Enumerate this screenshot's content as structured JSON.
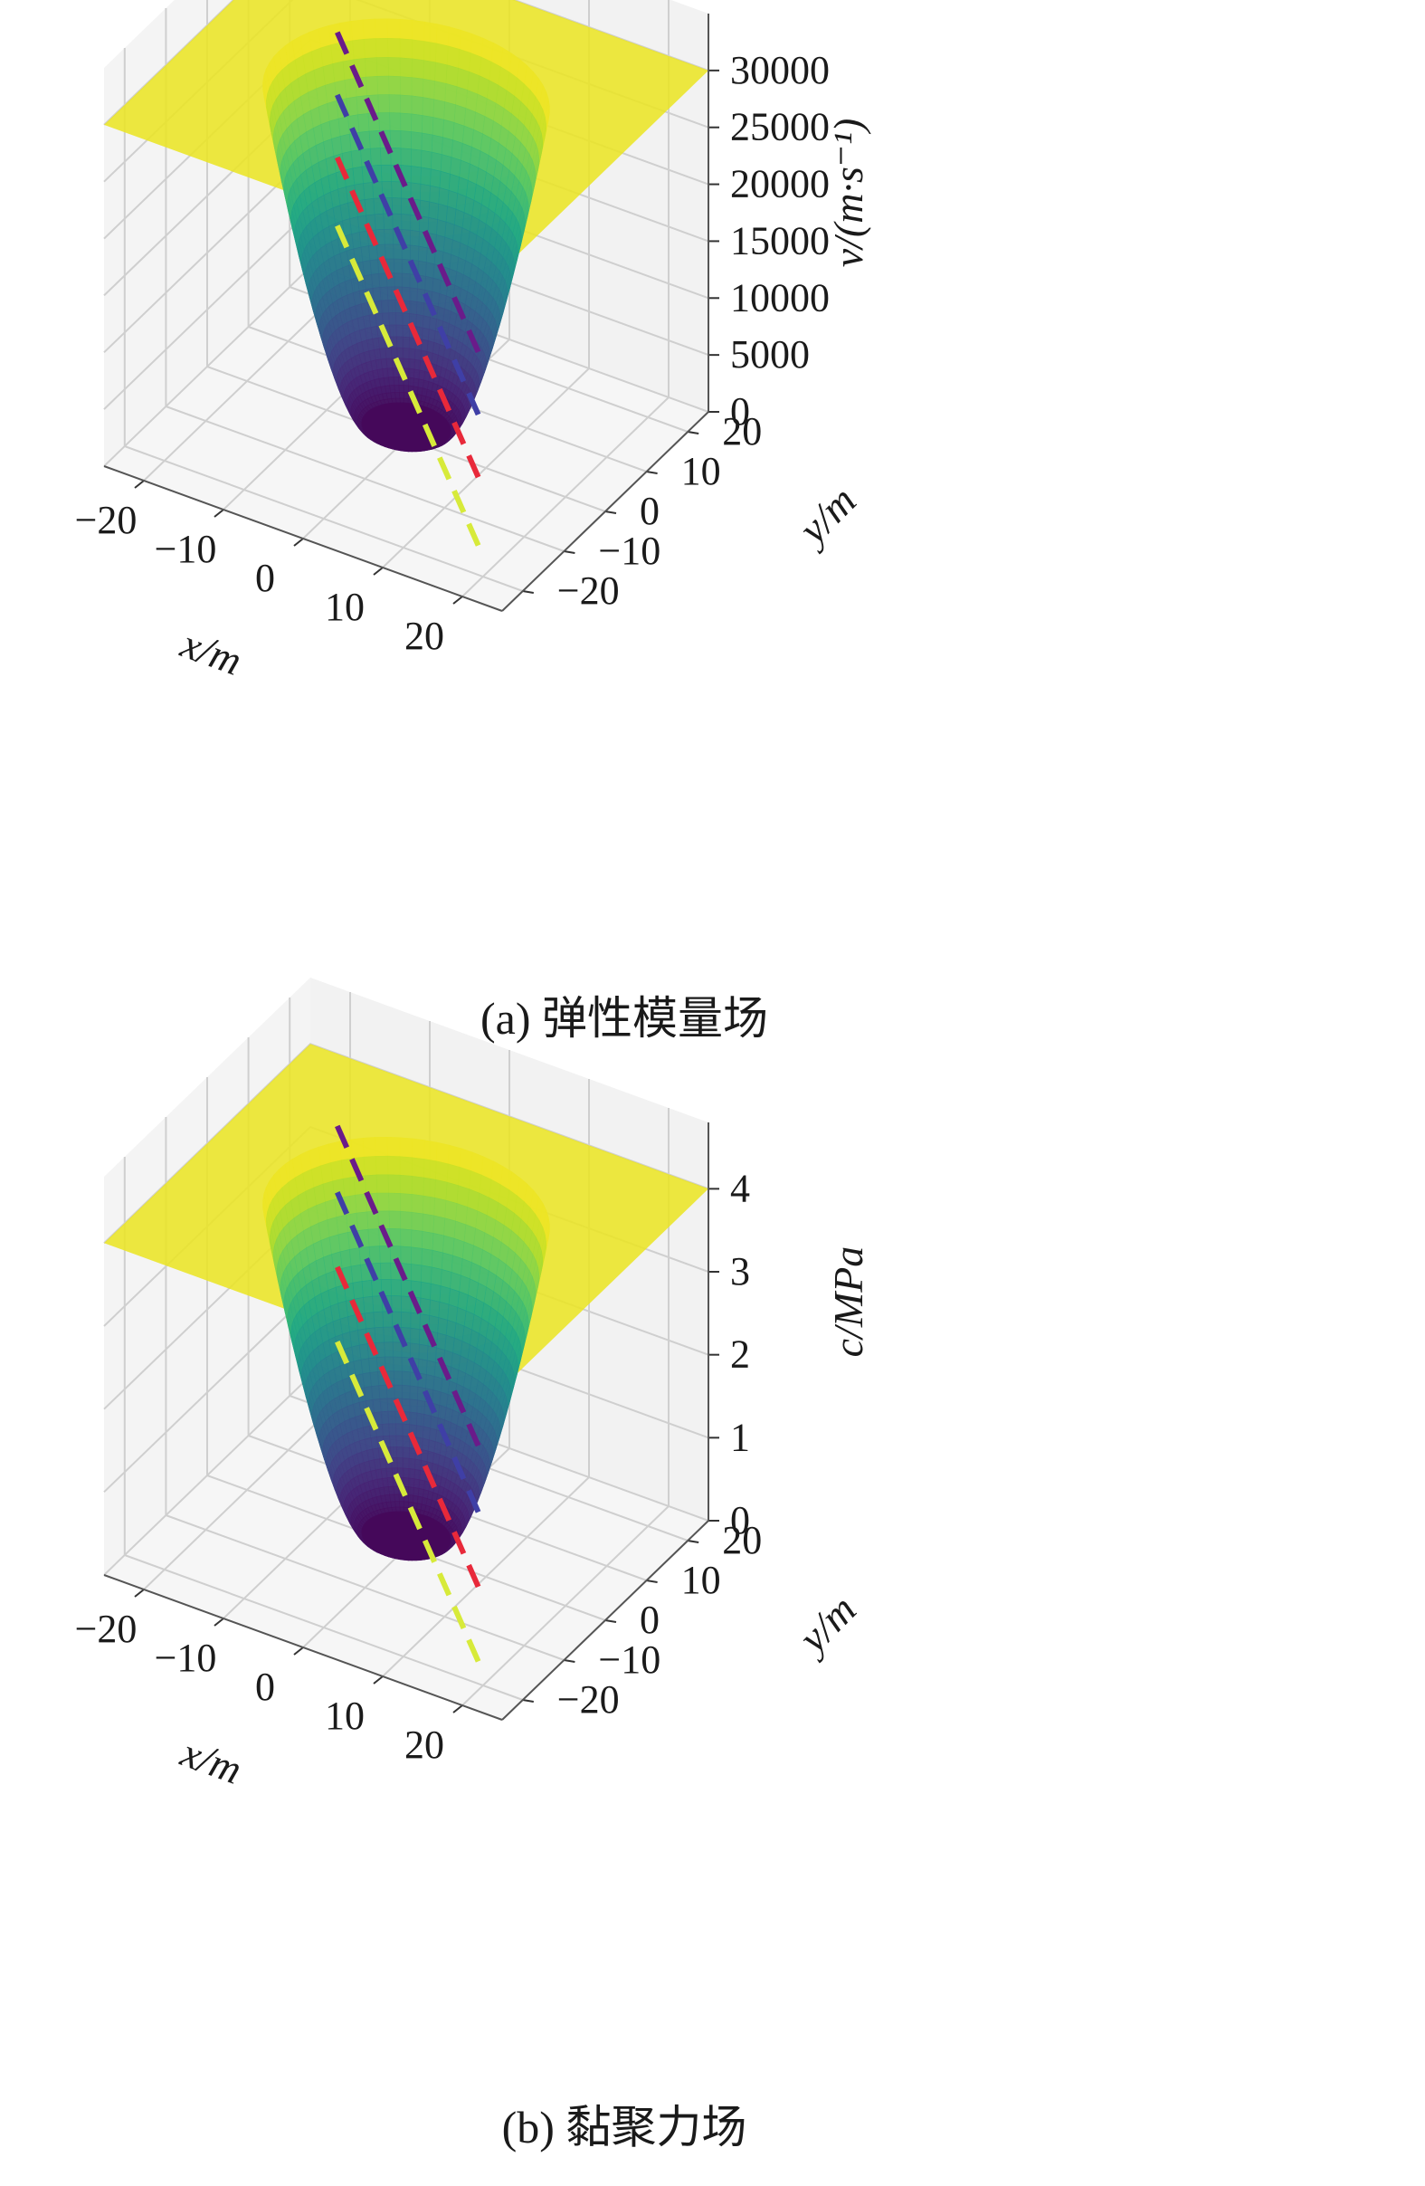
{
  "chart_data": [
    {
      "type": "surface3d",
      "caption": "(a) 弹性模量场",
      "xlabel": "x/m",
      "ylabel": "y/m",
      "zlabel": "v/(m·s⁻¹)",
      "xlim": [
        -25,
        25
      ],
      "ylim": [
        -25,
        25
      ],
      "zlim": [
        0,
        35000
      ],
      "x_ticks": [
        "−20",
        "−10",
        "0",
        "10",
        "20"
      ],
      "y_ticks": [
        "−20",
        "−10",
        "0",
        "10",
        "20"
      ],
      "z_ticks": [
        "0",
        "5000",
        "10000",
        "15000",
        "20000",
        "25000",
        "30000"
      ],
      "z_tick_values": [
        0,
        5000,
        10000,
        15000,
        20000,
        25000,
        30000
      ],
      "colormap": "viridis",
      "surface": {
        "shape": "funnel",
        "bottom_radius": 5,
        "bottom_value": 0,
        "plateau_value": 30000,
        "top_radius": 16
      },
      "dashed_lines": [
        {
          "color": "#6a1b8a",
          "z": 22000
        },
        {
          "color": "#3f3fa6",
          "z": 16500
        },
        {
          "color": "#e8293a",
          "z": 11000
        },
        {
          "color": "#d7ea3a",
          "z": 5000
        }
      ],
      "grid": true
    },
    {
      "type": "surface3d",
      "caption": "(b) 黏聚力场",
      "xlabel": "x/m",
      "ylabel": "y/m",
      "zlabel": "c/MPa",
      "xlim": [
        -25,
        25
      ],
      "ylim": [
        -25,
        25
      ],
      "zlim": [
        0,
        4.8
      ],
      "x_ticks": [
        "−20",
        "−10",
        "0",
        "10",
        "20"
      ],
      "y_ticks": [
        "−20",
        "−10",
        "0",
        "10",
        "20"
      ],
      "z_ticks": [
        "0",
        "1",
        "2",
        "3",
        "4"
      ],
      "z_tick_values": [
        0,
        1,
        2,
        3,
        4
      ],
      "colormap": "viridis",
      "surface": {
        "shape": "funnel",
        "bottom_radius": 5,
        "bottom_value": 0,
        "plateau_value": 4.0,
        "top_radius": 16
      },
      "dashed_lines": [
        {
          "color": "#6a1b8a",
          "z": 3.2
        },
        {
          "color": "#3f3fa6",
          "z": 2.4
        },
        {
          "color": "#e8293a",
          "z": 1.5
        },
        {
          "color": "#d7ea3a",
          "z": 0.6
        }
      ],
      "grid": true
    }
  ]
}
